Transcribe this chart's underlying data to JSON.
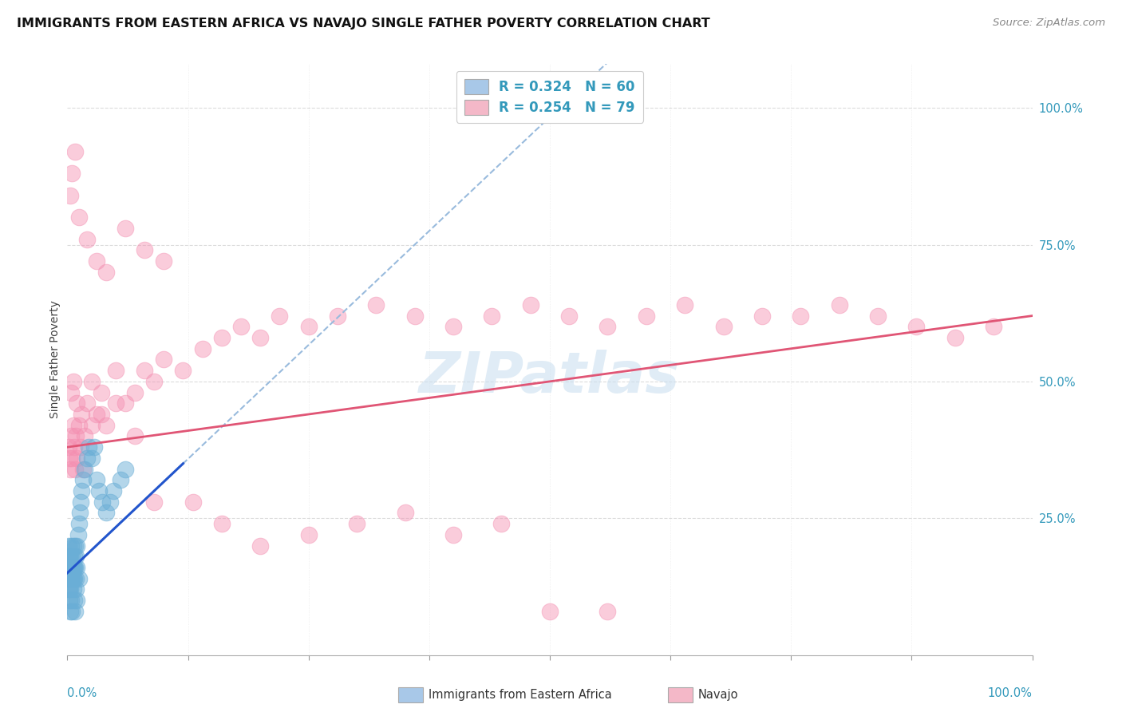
{
  "title": "IMMIGRANTS FROM EASTERN AFRICA VS NAVAJO SINGLE FATHER POVERTY CORRELATION CHART",
  "source": "Source: ZipAtlas.com",
  "ylabel": "Single Father Poverty",
  "legend1_label": "R = 0.324   N = 60",
  "legend2_label": "R = 0.254   N = 79",
  "legend1_color": "#a8c8e8",
  "legend2_color": "#f4b8c8",
  "watermark": "ZIPatlas",
  "blue_scatter_color": "#6aaed6",
  "pink_scatter_color": "#f48fb1",
  "blue_line_color": "#2255cc",
  "pink_line_color": "#e05575",
  "dashed_line_color": "#99bbdd",
  "grid_color": "#cccccc",
  "blue_points_x": [
    0.001,
    0.001,
    0.001,
    0.001,
    0.001,
    0.002,
    0.002,
    0.002,
    0.002,
    0.003,
    0.003,
    0.003,
    0.003,
    0.004,
    0.004,
    0.004,
    0.005,
    0.005,
    0.005,
    0.006,
    0.006,
    0.006,
    0.007,
    0.007,
    0.007,
    0.008,
    0.008,
    0.009,
    0.009,
    0.01,
    0.01,
    0.011,
    0.012,
    0.013,
    0.014,
    0.015,
    0.016,
    0.018,
    0.02,
    0.022,
    0.025,
    0.028,
    0.03,
    0.033,
    0.036,
    0.04,
    0.044,
    0.048,
    0.055,
    0.06,
    0.002,
    0.003,
    0.004,
    0.005,
    0.006,
    0.007,
    0.008,
    0.009,
    0.01,
    0.012
  ],
  "blue_points_y": [
    0.18,
    0.16,
    0.14,
    0.12,
    0.2,
    0.16,
    0.14,
    0.18,
    0.12,
    0.16,
    0.14,
    0.18,
    0.12,
    0.16,
    0.2,
    0.14,
    0.16,
    0.14,
    0.18,
    0.16,
    0.14,
    0.2,
    0.16,
    0.14,
    0.18,
    0.16,
    0.2,
    0.18,
    0.14,
    0.2,
    0.16,
    0.22,
    0.24,
    0.26,
    0.28,
    0.3,
    0.32,
    0.34,
    0.36,
    0.38,
    0.36,
    0.38,
    0.32,
    0.3,
    0.28,
    0.26,
    0.28,
    0.3,
    0.32,
    0.34,
    0.1,
    0.08,
    0.1,
    0.08,
    0.12,
    0.1,
    0.08,
    0.12,
    0.1,
    0.14
  ],
  "pink_points_x": [
    0.001,
    0.002,
    0.003,
    0.004,
    0.005,
    0.006,
    0.007,
    0.008,
    0.009,
    0.01,
    0.012,
    0.014,
    0.016,
    0.018,
    0.02,
    0.025,
    0.03,
    0.035,
    0.04,
    0.05,
    0.06,
    0.07,
    0.08,
    0.09,
    0.1,
    0.12,
    0.14,
    0.16,
    0.18,
    0.2,
    0.22,
    0.25,
    0.28,
    0.32,
    0.36,
    0.4,
    0.44,
    0.48,
    0.52,
    0.56,
    0.6,
    0.64,
    0.68,
    0.72,
    0.76,
    0.8,
    0.84,
    0.88,
    0.92,
    0.96,
    0.003,
    0.005,
    0.008,
    0.012,
    0.02,
    0.03,
    0.04,
    0.06,
    0.08,
    0.1,
    0.13,
    0.16,
    0.2,
    0.25,
    0.3,
    0.35,
    0.4,
    0.45,
    0.5,
    0.56,
    0.004,
    0.006,
    0.01,
    0.015,
    0.025,
    0.035,
    0.05,
    0.07,
    0.09
  ],
  "pink_points_y": [
    0.38,
    0.36,
    0.34,
    0.4,
    0.36,
    0.42,
    0.38,
    0.34,
    0.4,
    0.36,
    0.42,
    0.38,
    0.34,
    0.4,
    0.46,
    0.5,
    0.44,
    0.48,
    0.42,
    0.52,
    0.46,
    0.48,
    0.52,
    0.5,
    0.54,
    0.52,
    0.56,
    0.58,
    0.6,
    0.58,
    0.62,
    0.6,
    0.62,
    0.64,
    0.62,
    0.6,
    0.62,
    0.64,
    0.62,
    0.6,
    0.62,
    0.64,
    0.6,
    0.62,
    0.62,
    0.64,
    0.62,
    0.6,
    0.58,
    0.6,
    0.84,
    0.88,
    0.92,
    0.8,
    0.76,
    0.72,
    0.7,
    0.78,
    0.74,
    0.72,
    0.28,
    0.24,
    0.2,
    0.22,
    0.24,
    0.26,
    0.22,
    0.24,
    0.08,
    0.08,
    0.48,
    0.5,
    0.46,
    0.44,
    0.42,
    0.44,
    0.46,
    0.4,
    0.28
  ]
}
